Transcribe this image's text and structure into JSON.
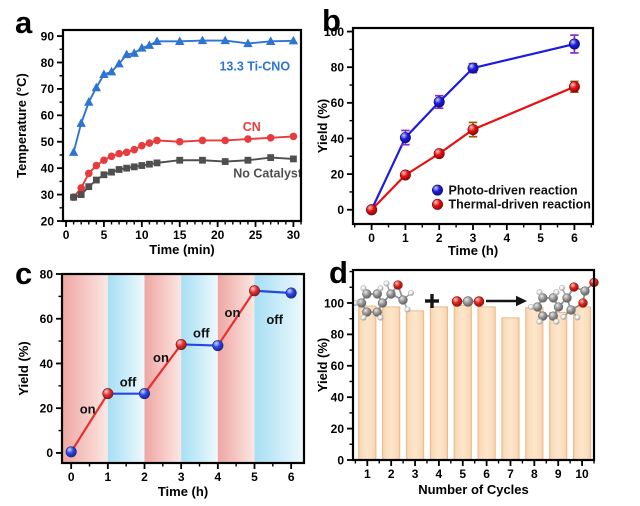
{
  "figure": {
    "background": "#ffffff"
  },
  "panels": [
    {
      "letter": "a",
      "chart_data": {
        "type": "line",
        "xlabel": "Time (min)",
        "ylabel": "Temperature (°C)",
        "xlim": [
          -0.4,
          31
        ],
        "ylim": [
          20,
          92.3
        ],
        "xticks": [
          0,
          5,
          10,
          15,
          20,
          25,
          30
        ],
        "yticks": [
          20,
          30,
          40,
          50,
          60,
          70,
          80,
          90
        ],
        "x_minor_step": 1,
        "y_minor_step": 5,
        "grid": false,
        "x": [
          1,
          2,
          3,
          4,
          5,
          6,
          7,
          8,
          9,
          10,
          11,
          12,
          15,
          18,
          21,
          24,
          27,
          30
        ],
        "series": [
          {
            "name": "13.3 Ti-CNO",
            "color": "#2e74d2",
            "marker": "triangle",
            "values": [
              46,
              57,
              65,
              70.5,
              75.5,
              76.5,
              79.5,
              83,
              83.5,
              85.5,
              86.5,
              88,
              88,
              88.3,
              88.3,
              87.2,
              88,
              88.2
            ]
          },
          {
            "name": "CN",
            "color": "#e73b3e",
            "marker": "circle",
            "values": [
              29,
              32.5,
              38,
              41,
              43,
              44.5,
              45.5,
              46,
              47,
              48.5,
              49.5,
              50.5,
              50,
              50.5,
              50.5,
              51,
              51.5,
              52
            ]
          },
          {
            "name": "No Catalyst",
            "color": "#4f4f4f",
            "marker": "square",
            "values": [
              29,
              30,
              33,
              35.5,
              37.5,
              38.5,
              39.5,
              40,
              40.5,
              41,
              41.5,
              42,
              43,
              43,
              42.5,
              43,
              44,
              43.5
            ]
          }
        ],
        "annotations": [
          {
            "text": "13.3 Ti-CNO",
            "x": 24.9,
            "y": 78.5,
            "color": "#2e74d2"
          },
          {
            "text": "CN",
            "x": 24.5,
            "y": 55.5,
            "color": "#e73b3e"
          },
          {
            "text": "No Catalyst",
            "x": 26.6,
            "y": 38,
            "color": "#4f4f4f"
          }
        ]
      }
    },
    {
      "letter": "b",
      "chart_data": {
        "type": "line",
        "xlabel": "Time (h)",
        "ylabel": "Yield (%)",
        "xlim": [
          -0.55,
          6.55
        ],
        "ylim": [
          -8,
          102
        ],
        "xticks": [
          0,
          1,
          2,
          3,
          4,
          5,
          6
        ],
        "yticks": [
          0,
          20,
          40,
          60,
          80,
          100
        ],
        "x_minor_step": 0.5,
        "y_minor_step": 10,
        "grid": false,
        "x": [
          0,
          1,
          2,
          3,
          6
        ],
        "series": [
          {
            "name": "Photo-driven reaction",
            "color": "#1c1ce0",
            "marker": "ball",
            "values": [
              0,
              40.5,
              60.5,
              79.5,
              93
            ],
            "errors": [
              1.2,
              4,
              3.5,
              2.5,
              5
            ],
            "error_color": "#8d2bc9"
          },
          {
            "name": "Thermal-driven reaction",
            "color": "#ea0f0f",
            "marker": "ball",
            "values": [
              0,
              19.5,
              31.5,
              45,
              69
            ],
            "errors": [
              0.8,
              1.5,
              1.5,
              4,
              3
            ],
            "error_color": "#9c5a08"
          }
        ],
        "legend": {
          "x": 1.95,
          "y": 11,
          "row_dy": 8,
          "position": "lower right",
          "entries": [
            {
              "label": "Photo-driven reaction",
              "color": "#1c1ce0"
            },
            {
              "label": "Thermal-driven reaction",
              "color": "#ea0f0f"
            }
          ]
        }
      }
    },
    {
      "letter": "c",
      "chart_data": {
        "type": "line",
        "xlabel": "Time (h)",
        "ylabel": "Yield (%)",
        "xlim": [
          -0.25,
          6.35
        ],
        "ylim": [
          -4.5,
          80
        ],
        "xticks": [
          0,
          1,
          2,
          3,
          4,
          5,
          6
        ],
        "yticks": [
          0,
          20,
          40,
          60,
          80
        ],
        "x_minor_step": 0.5,
        "y_minor_step": 10,
        "grid": false,
        "x": [
          0,
          1,
          2,
          3,
          4,
          5,
          6
        ],
        "y": [
          0.5,
          26.5,
          26.5,
          48.5,
          48,
          72.5,
          71.5
        ],
        "segment_colors": [
          "#e63030",
          "#2a46e8",
          "#e63030",
          "#2a46e8",
          "#e63030",
          "#2a46e8"
        ],
        "point_colors": [
          "#2a46e8",
          "#e63030",
          "#2a46e8",
          "#e63030",
          "#2a46e8",
          "#e63030",
          "#2a46e8"
        ],
        "bands": [
          {
            "from": -0.25,
            "to": 1,
            "kind": "red",
            "label": "on"
          },
          {
            "from": 1,
            "to": 2,
            "kind": "blue",
            "label": "off"
          },
          {
            "from": 2,
            "to": 3,
            "kind": "red",
            "label": "on"
          },
          {
            "from": 3,
            "to": 4,
            "kind": "blue",
            "label": "off"
          },
          {
            "from": 4,
            "to": 5,
            "kind": "red",
            "label": "on"
          },
          {
            "from": 5,
            "to": 6.35,
            "kind": "blue",
            "label": "off"
          }
        ],
        "band_colors": {
          "red": [
            "#efa6a3",
            "#fbe7e3"
          ],
          "blue": [
            "#a6dff4",
            "#eef9fd"
          ]
        },
        "annotations": [
          {
            "text": "on",
            "x": 0.45,
            "y": 19.5,
            "color": "#111111",
            "size": 13
          },
          {
            "text": "off",
            "x": 1.55,
            "y": 31.5,
            "color": "#111111",
            "size": 13
          },
          {
            "text": "on",
            "x": 2.45,
            "y": 42.5,
            "color": "#111111",
            "size": 13
          },
          {
            "text": "off",
            "x": 3.55,
            "y": 53.5,
            "color": "#111111",
            "size": 13
          },
          {
            "text": "on",
            "x": 4.4,
            "y": 62.5,
            "color": "#111111",
            "size": 13
          },
          {
            "text": "off",
            "x": 5.55,
            "y": 59.5,
            "color": "#111111",
            "size": 13
          }
        ]
      }
    },
    {
      "letter": "d",
      "chart_data": {
        "type": "bar",
        "xlabel": "Number of Cycles",
        "ylabel": "Yield (%)",
        "xlim": [
          0.4,
          10.5
        ],
        "ylim": [
          0,
          121
        ],
        "xticks": [
          1,
          2,
          3,
          4,
          5,
          6,
          7,
          8,
          9,
          10
        ],
        "yticks": [
          0,
          20,
          40,
          60,
          80,
          100
        ],
        "x_minor_step": 0.5,
        "y_minor_step": 10,
        "grid": false,
        "categories": [
          1,
          2,
          3,
          4,
          5,
          6,
          7,
          8,
          9,
          10
        ],
        "values": [
          98,
          97.5,
          95,
          97.5,
          98.5,
          97.5,
          90.5,
          97,
          94,
          97.5
        ],
        "bar_color": "#fbdcba",
        "bar_edge": "#e8ba8c",
        "bar_width": 0.72,
        "reaction_scheme": {
          "reactant_icon": "styrene-oxide-molecule",
          "plus": "+",
          "reagent_icon": "co2-molecule",
          "arrow_icon": "reaction-arrow",
          "product_icon": "styrene-carbonate-molecule",
          "atom_colors": {
            "C": "#9b9b9b",
            "H": "#f0f0f0",
            "O": "#e0241b"
          }
        }
      }
    }
  ]
}
